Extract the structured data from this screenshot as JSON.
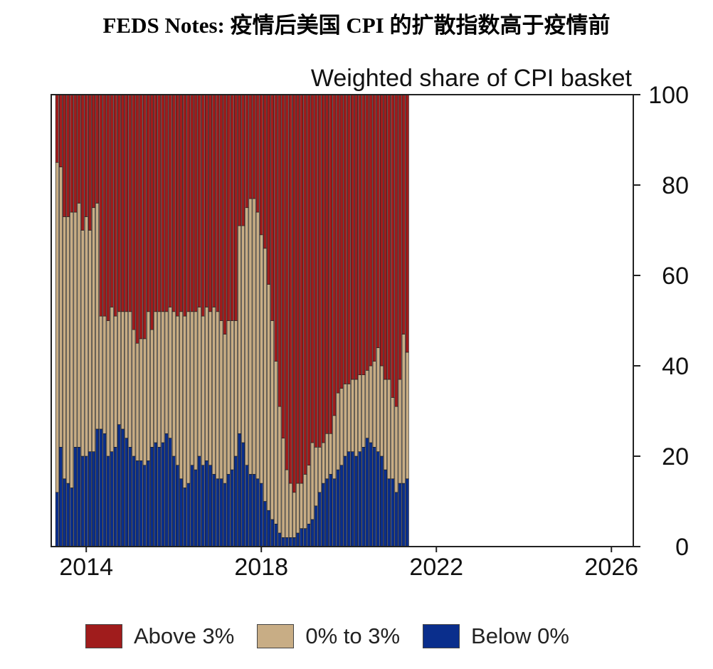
{
  "page": {
    "title": "FEDS Notes: 疫情后美国 CPI 的扩散指数高于疫情前"
  },
  "colors": {
    "above": "#a01c1c",
    "mid": "#c8ad85",
    "below": "#0a2e8c"
  },
  "legend": {
    "above_label": "Above 3%",
    "mid_label": "0% to 3%",
    "below_label": "Below 0%"
  },
  "chart_data": {
    "type": "bar",
    "stacked": true,
    "title": "FEDS Notes: 疫情后美国 CPI 的扩散指数高于疫情前",
    "ylabel": "Weighted share of CPI basket",
    "xlabel": "",
    "ylim": [
      0,
      100
    ],
    "yticks": [
      0,
      20,
      40,
      60,
      80,
      100
    ],
    "y_axis_side": "right",
    "x_tick_labels": [
      "2014",
      "2018",
      "2022",
      "2026"
    ],
    "x_range": [
      2013.2,
      2026.5
    ],
    "bar_period": "monthly",
    "bar_start": 2013.3,
    "legend_position": "bottom",
    "series": [
      {
        "name": "Below 0%",
        "color_key": "below",
        "values": [
          12,
          22,
          15,
          14,
          13,
          22,
          22,
          20,
          20,
          21,
          21,
          26,
          26,
          25,
          20,
          21,
          22,
          27,
          26,
          24,
          22,
          20,
          19,
          19,
          18,
          19,
          22,
          23,
          22,
          23,
          25,
          24,
          20,
          18,
          15,
          13,
          14,
          18,
          17,
          20,
          18,
          19,
          18,
          16,
          15,
          15,
          14,
          16,
          17,
          20,
          25,
          23,
          18,
          16,
          16,
          15,
          14,
          10,
          8,
          6,
          5,
          3,
          2,
          2,
          2,
          2,
          3,
          4,
          4,
          5,
          6,
          9,
          12,
          14,
          15,
          16,
          15,
          17,
          18,
          20,
          21,
          21,
          20,
          21,
          22,
          24,
          23,
          22,
          21,
          20,
          17,
          15,
          15,
          12,
          14,
          14,
          15
        ]
      },
      {
        "name": "0% to 3%",
        "color_key": "mid",
        "values": [
          73,
          62,
          58,
          59,
          61,
          52,
          54,
          50,
          53,
          49,
          54,
          50,
          25,
          26,
          30,
          32,
          29,
          25,
          26,
          28,
          30,
          28,
          26,
          27,
          28,
          33,
          26,
          29,
          30,
          29,
          27,
          29,
          32,
          33,
          37,
          38,
          38,
          34,
          35,
          33,
          33,
          34,
          34,
          37,
          37,
          35,
          33,
          34,
          33,
          30,
          46,
          48,
          57,
          61,
          61,
          59,
          55,
          56,
          50,
          44,
          36,
          28,
          22,
          15,
          12,
          10,
          11,
          10,
          12,
          13,
          17,
          13,
          10,
          9,
          10,
          9,
          14,
          17,
          17,
          16,
          15,
          16,
          17,
          17,
          16,
          15,
          17,
          19,
          23,
          20,
          20,
          22,
          18,
          19,
          23,
          33,
          28
        ]
      }
    ]
  }
}
